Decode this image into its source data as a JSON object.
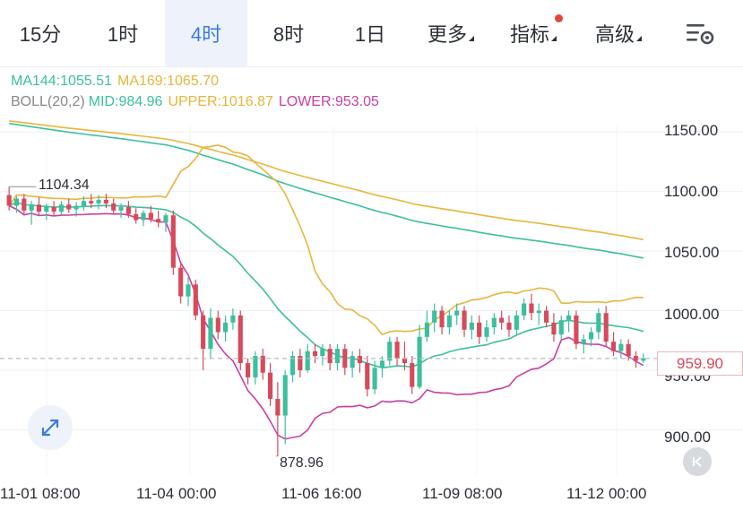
{
  "tabs": [
    {
      "label": "15分",
      "active": false,
      "dropdown": false
    },
    {
      "label": "1时",
      "active": false,
      "dropdown": false
    },
    {
      "label": "4时",
      "active": true,
      "dropdown": false
    },
    {
      "label": "8时",
      "active": false,
      "dropdown": false
    },
    {
      "label": "1日",
      "active": false,
      "dropdown": false
    },
    {
      "label": "更多",
      "active": false,
      "dropdown": true
    },
    {
      "label": "指标",
      "active": false,
      "dropdown": true,
      "notification_dot": true
    },
    {
      "label": "高级",
      "active": false,
      "dropdown": true
    }
  ],
  "settings_icon": "chart-settings-icon",
  "expand_icon": "expand-arrows-icon",
  "scroll_icon": "scroll-to-latest-icon",
  "indicators": {
    "ma144": {
      "label": "MA144:1055.51",
      "color": "#3cbf9d"
    },
    "ma169": {
      "label": "MA169:1065.70",
      "color": "#e8b53d"
    },
    "boll": {
      "name": "BOLL(20,2)",
      "mid": "MID:984.96",
      "upper": "UPPER:1016.87",
      "lower": "LOWER:953.05",
      "name_color": "#888888",
      "mid_color": "#3cbf9d",
      "upper_color": "#e8b53d",
      "lower_color": "#c93fa2"
    }
  },
  "chart_data": {
    "type": "candlestick",
    "y_ticks": [
      "1150.00",
      "1100.00",
      "1050.00",
      "1000.00",
      "950.00",
      "900.00"
    ],
    "y_tick_values": [
      1150,
      1100,
      1050,
      1000,
      950,
      900
    ],
    "x_ticks": [
      "11-01 08:00",
      "11-04 00:00",
      "11-06 16:00",
      "11-09 08:00",
      "11-12 00:00"
    ],
    "ylim": [
      862,
      1205
    ],
    "current_price": "959.90",
    "current_price_value": 959.9,
    "max_label": "1104.34",
    "min_label": "878.96",
    "up_color": "#3cbf9d",
    "down_color": "#d64a5a",
    "candles": [
      [
        1097,
        1104,
        1084,
        1088
      ],
      [
        1088,
        1096,
        1082,
        1094
      ],
      [
        1094,
        1098,
        1080,
        1084
      ],
      [
        1084,
        1092,
        1072,
        1089
      ],
      [
        1089,
        1095,
        1080,
        1083
      ],
      [
        1083,
        1090,
        1076,
        1087
      ],
      [
        1087,
        1092,
        1079,
        1083
      ],
      [
        1083,
        1092,
        1080,
        1089
      ],
      [
        1089,
        1094,
        1082,
        1085
      ],
      [
        1085,
        1091,
        1079,
        1088
      ],
      [
        1088,
        1096,
        1084,
        1092
      ],
      [
        1092,
        1098,
        1086,
        1090
      ],
      [
        1090,
        1097,
        1085,
        1093
      ],
      [
        1093,
        1098,
        1086,
        1090
      ],
      [
        1090,
        1094,
        1081,
        1084
      ],
      [
        1084,
        1090,
        1078,
        1087
      ],
      [
        1087,
        1092,
        1078,
        1081
      ],
      [
        1081,
        1086,
        1073,
        1076
      ],
      [
        1076,
        1084,
        1071,
        1082
      ],
      [
        1082,
        1088,
        1074,
        1077
      ],
      [
        1077,
        1084,
        1070,
        1074
      ],
      [
        1074,
        1082,
        1066,
        1080
      ],
      [
        1080,
        1084,
        1030,
        1036
      ],
      [
        1036,
        1040,
        1006,
        1012
      ],
      [
        1012,
        1028,
        1004,
        1022
      ],
      [
        1022,
        1026,
        992,
        996
      ],
      [
        996,
        1000,
        950,
        968
      ],
      [
        968,
        1002,
        960,
        994
      ],
      [
        994,
        1000,
        976,
        982
      ],
      [
        982,
        996,
        974,
        990
      ],
      [
        990,
        1002,
        984,
        996
      ],
      [
        996,
        1000,
        950,
        956
      ],
      [
        956,
        960,
        938,
        944
      ],
      [
        944,
        966,
        938,
        962
      ],
      [
        962,
        968,
        942,
        948
      ],
      [
        948,
        956,
        920,
        926
      ],
      [
        926,
        940,
        878,
        912
      ],
      [
        912,
        950,
        888,
        946
      ],
      [
        946,
        966,
        940,
        962
      ],
      [
        962,
        968,
        944,
        950
      ],
      [
        950,
        972,
        948,
        966
      ],
      [
        966,
        972,
        956,
        962
      ],
      [
        962,
        972,
        954,
        968
      ],
      [
        968,
        972,
        950,
        956
      ],
      [
        956,
        972,
        950,
        968
      ],
      [
        968,
        972,
        946,
        952
      ],
      [
        952,
        966,
        944,
        962
      ],
      [
        962,
        968,
        948,
        956
      ],
      [
        956,
        962,
        928,
        934
      ],
      [
        934,
        958,
        930,
        952
      ],
      [
        952,
        962,
        944,
        958
      ],
      [
        958,
        978,
        954,
        974
      ],
      [
        974,
        978,
        954,
        960
      ],
      [
        960,
        974,
        950,
        956
      ],
      [
        956,
        962,
        930,
        936
      ],
      [
        936,
        988,
        934,
        978
      ],
      [
        978,
        1000,
        974,
        990
      ],
      [
        990,
        1006,
        982,
        1000
      ],
      [
        1000,
        1004,
        980,
        986
      ],
      [
        986,
        1000,
        980,
        996
      ],
      [
        996,
        1006,
        988,
        1000
      ],
      [
        1000,
        1004,
        978,
        984
      ],
      [
        984,
        996,
        976,
        990
      ],
      [
        990,
        996,
        972,
        978
      ],
      [
        978,
        992,
        974,
        986
      ],
      [
        986,
        998,
        980,
        994
      ],
      [
        994,
        1000,
        984,
        990
      ],
      [
        990,
        996,
        978,
        984
      ],
      [
        984,
        1000,
        980,
        996
      ],
      [
        996,
        1010,
        992,
        1006
      ],
      [
        1006,
        1014,
        992,
        998
      ],
      [
        998,
        1006,
        988,
        1000
      ],
      [
        1000,
        1004,
        986,
        990
      ],
      [
        990,
        998,
        974,
        980
      ],
      [
        980,
        996,
        976,
        992
      ],
      [
        992,
        1000,
        982,
        996
      ],
      [
        996,
        1000,
        968,
        972
      ],
      [
        972,
        980,
        964,
        976
      ],
      [
        976,
        986,
        970,
        982
      ],
      [
        982,
        1002,
        976,
        998
      ],
      [
        998,
        1004,
        970,
        974
      ],
      [
        974,
        982,
        962,
        966
      ],
      [
        966,
        976,
        960,
        972
      ],
      [
        972,
        976,
        958,
        962
      ],
      [
        962,
        966,
        952,
        958
      ],
      [
        958,
        964,
        956,
        960
      ]
    ]
  }
}
